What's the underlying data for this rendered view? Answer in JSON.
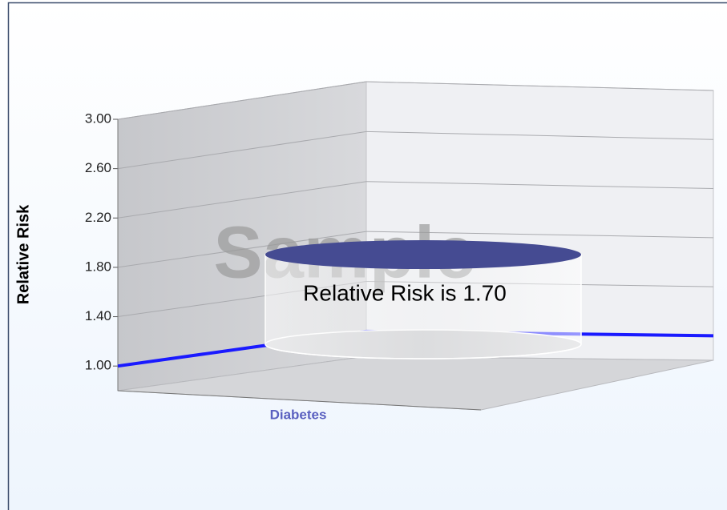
{
  "chart_data": {
    "type": "bar3d",
    "y_label": "Relative Risk",
    "watermark": "Sample",
    "categories": [
      "Diabetes"
    ],
    "values": [
      1.7
    ],
    "value_labels": [
      "Relative Risk is 1.70"
    ],
    "color": "#454b92",
    "reference_line": {
      "value": 1.0,
      "color": "#1a1aff"
    },
    "ylim": [
      0.8,
      3.0
    ],
    "yticks": [
      {
        "value": 1.0,
        "label": "1.00"
      },
      {
        "value": 1.4,
        "label": "1.40"
      },
      {
        "value": 1.8,
        "label": "1.80"
      },
      {
        "value": 2.2,
        "label": "2.20"
      },
      {
        "value": 2.6,
        "label": "2.60"
      },
      {
        "value": 3.0,
        "label": "3.00"
      }
    ],
    "grid": true
  }
}
